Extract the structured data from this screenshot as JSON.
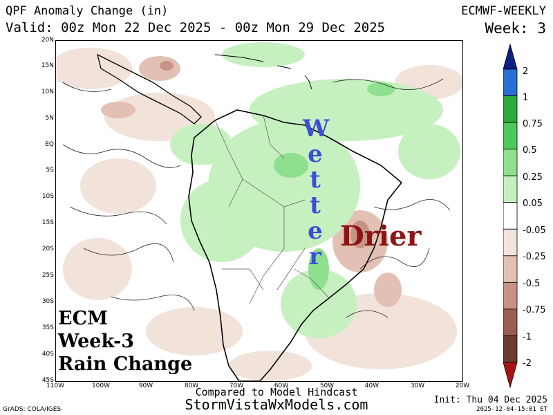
{
  "header": {
    "title": "QPF Anomaly Change (in)",
    "valid": "Valid: 00z Mon 22 Dec 2025 - 00z Mon 29 Dec 2025",
    "model": "ECMWF-WEEKLY",
    "week": "Week: 3"
  },
  "map": {
    "lat_labels": [
      "20N",
      "15N",
      "10N",
      "5N",
      "EQ",
      "5S",
      "10S",
      "15S",
      "20S",
      "25S",
      "30S",
      "35S",
      "40S",
      "45S"
    ],
    "lon_labels": [
      "110W",
      "100W",
      "90W",
      "80W",
      "70W",
      "60W",
      "50W",
      "40W",
      "30W",
      "20W"
    ]
  },
  "overlays": {
    "wetter_letters": [
      "W",
      "e",
      "t",
      "t",
      "e",
      "r"
    ],
    "drier": "Drier",
    "ecm_lines": [
      "ECM",
      "Week-3",
      "Rain Change"
    ]
  },
  "footer": {
    "compared": "Compared to Model Hindcast",
    "site": "StormVistaWxModels.com",
    "init": "Init: Thu 04 Dec 2025",
    "stamp": "2025-12-04-15:01 ET",
    "grads": "GrADS: COLA/IGES"
  },
  "legend": {
    "labels": [
      "2",
      "1",
      "0.75",
      "0.5",
      "0.25",
      "0.05",
      "-0.05",
      "-0.25",
      "-0.5",
      "-0.75",
      "-1",
      "-2"
    ],
    "colors": [
      "#0b1e8a",
      "#2a6fd6",
      "#2fa83b",
      "#4ec85a",
      "#8ee08e",
      "#c6f0c0",
      "#ffffff",
      "#f3e3dc",
      "#e2c0b4",
      "#c79385",
      "#9a5f52",
      "#6b3a30",
      "#a81414"
    ]
  }
}
